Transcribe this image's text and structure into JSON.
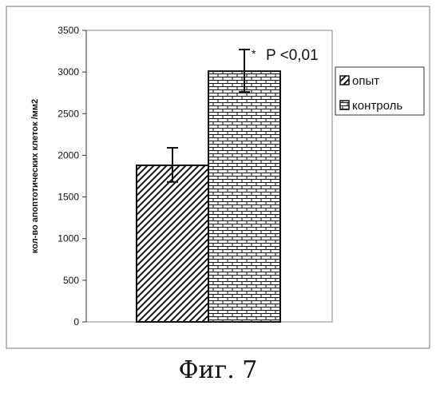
{
  "chart_data": {
    "type": "bar",
    "categories": [
      "опыт",
      "контроль"
    ],
    "values": [
      1880,
      3010
    ],
    "error_high": [
      2090,
      3270
    ],
    "error_low": [
      1680,
      2760
    ],
    "ylabel": "кол-во апоптотических клеток /мм2",
    "ylim": [
      0,
      3500
    ],
    "yticks": [
      0,
      500,
      1000,
      1500,
      2000,
      2500,
      3000,
      3500
    ],
    "grid": false,
    "legend": {
      "position": "right",
      "entries": [
        {
          "label": "опыт",
          "pattern": "diagonal"
        },
        {
          "label": "контроль",
          "pattern": "brick"
        }
      ]
    },
    "significance_marker": "*",
    "annotation": "P <0,01"
  },
  "caption": "Фиг. 7"
}
